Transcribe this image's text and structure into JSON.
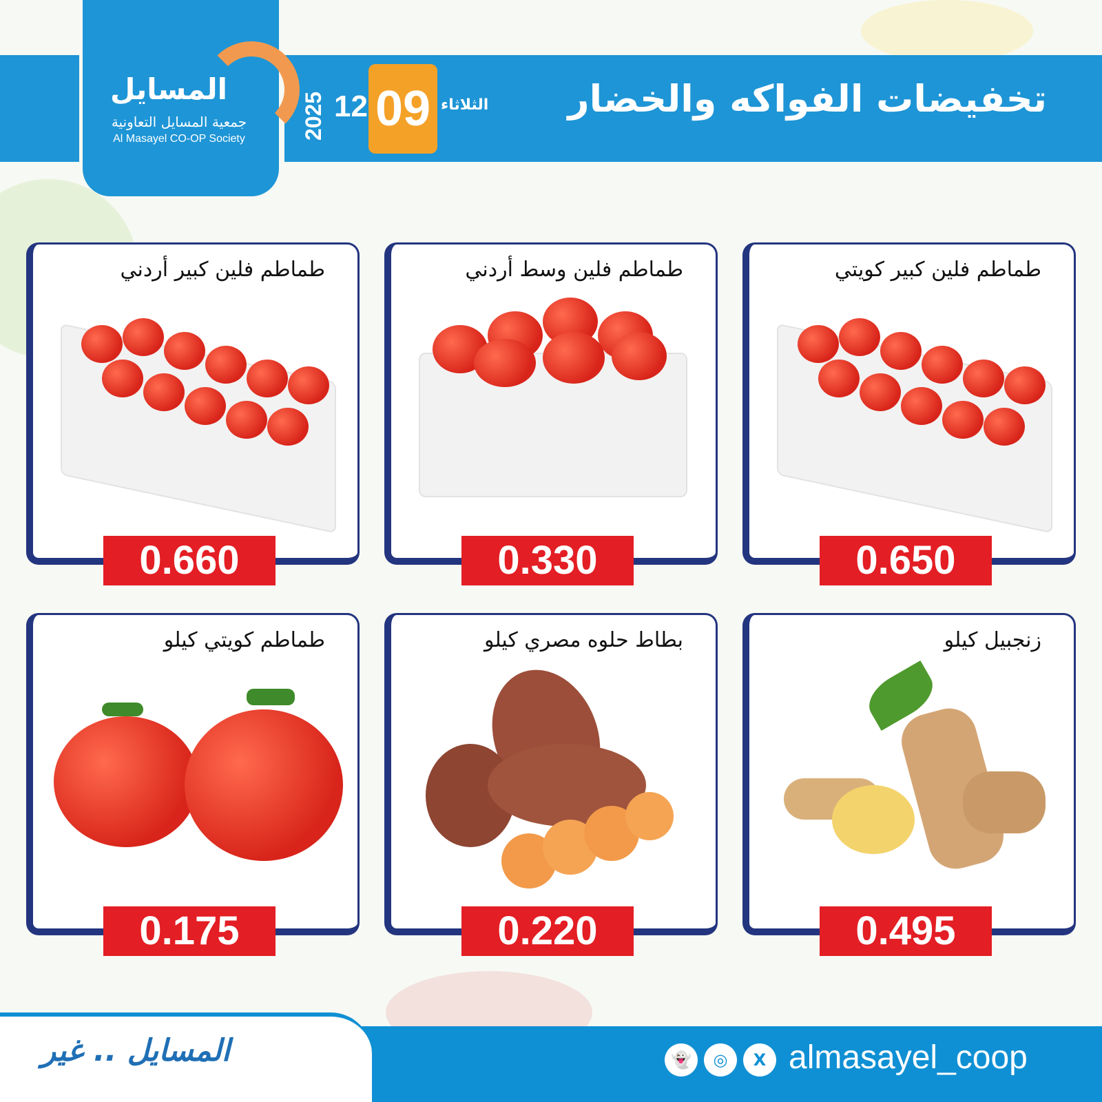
{
  "header": {
    "title": "تخفيضات الفواكه والخضار",
    "day": "الثلاثاء",
    "date_day": "09",
    "date_month": "12",
    "date_year": "2025",
    "logo_name": "المسايل",
    "logo_sub_ar": "جمعية المسايل التعاونية",
    "logo_sub_en": "Al Masayel CO-OP Society"
  },
  "products": [
    {
      "name": "طماطم فلين كبير كويتي",
      "price": "0.650",
      "image": "tomato-crate"
    },
    {
      "name": "طماطم فلين وسط أردني",
      "price": "0.330",
      "image": "tomato-crate-medium"
    },
    {
      "name": "طماطم فلين كبير أردني",
      "price": "0.660",
      "image": "tomato-crate"
    },
    {
      "name": "زنجبيل كيلو",
      "price": "0.495",
      "image": "ginger"
    },
    {
      "name": "بطاط حلوه مصري كيلو",
      "price": "0.220",
      "image": "sweet-potato"
    },
    {
      "name": "طماطم كويتي كيلو",
      "price": "0.175",
      "image": "tomatoes"
    }
  ],
  "footer": {
    "slogan": "المسايل .. غير",
    "handle": "almasayel_coop",
    "social_icons": [
      "snapchat-icon",
      "instagram-icon",
      "x-icon"
    ]
  },
  "colors": {
    "brand_blue": "#1e95d6",
    "accent_orange": "#f4a128",
    "price_red": "#e31e24",
    "frame_navy": "#23357f"
  }
}
